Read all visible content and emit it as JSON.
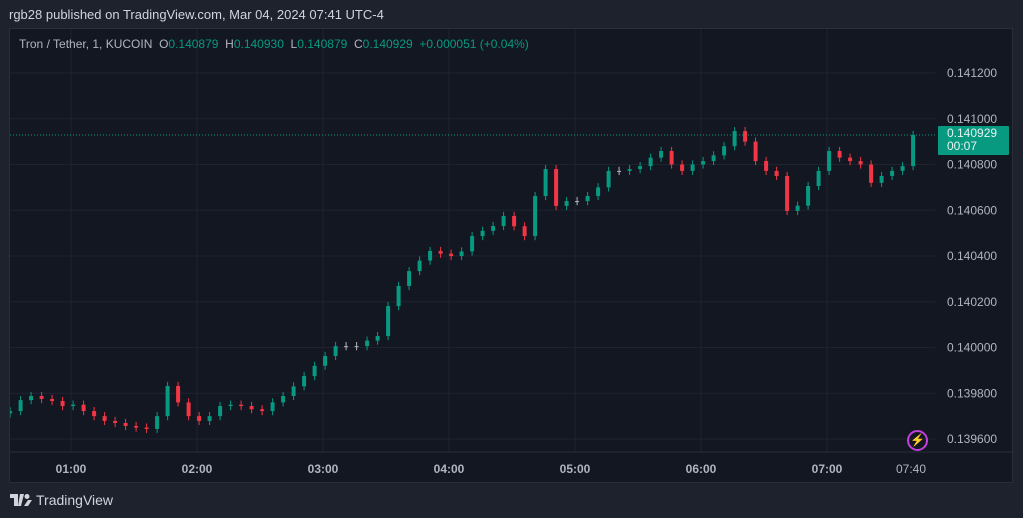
{
  "header": {
    "published": "rgb28 published on TradingView.com, Mar 04, 2024 07:41 UTC-4"
  },
  "legend": {
    "symbol": "Tron / Tether, 1, KUCOIN",
    "o_label": "O",
    "o": "0.140879",
    "h_label": "H",
    "h": "0.140930",
    "l_label": "L",
    "l": "0.140879",
    "c_label": "C",
    "c": "0.140929",
    "change": "+0.000051 (+0.04%)"
  },
  "price_tag": {
    "price": "0.140929",
    "countdown": "00:07"
  },
  "footer": {
    "brand": "TradingView"
  },
  "colors": {
    "up": "#089981",
    "down": "#f23645",
    "neutral": "#b2b5be",
    "grid": "#1f2330"
  },
  "chart_data": {
    "type": "candlestick",
    "title": "Tron / Tether, 1, KUCOIN",
    "ylim": [
      0.13952,
      0.14132
    ],
    "y_ticks": [
      "0.141200",
      "0.141000",
      "0.140800",
      "0.140600",
      "0.140400",
      "0.140200",
      "0.140000",
      "0.139800",
      "0.139600"
    ],
    "x_ticks": [
      "01:00",
      "02:00",
      "03:00",
      "04:00",
      "05:00",
      "06:00",
      "07:00",
      "07:40"
    ],
    "last_price": 0.140929,
    "interval_minutes": 5,
    "start_time": "00:31",
    "closes": [
      0.139722,
      0.13977,
      0.139788,
      0.139775,
      0.139766,
      0.139744,
      0.13975,
      0.139722,
      0.1397,
      0.139679,
      0.13967,
      0.139657,
      0.13965,
      0.139644,
      0.1397,
      0.139832,
      0.13976,
      0.1397,
      0.139679,
      0.1397,
      0.139744,
      0.13975,
      0.139744,
      0.13973,
      0.139722,
      0.13976,
      0.139788,
      0.13983,
      0.139875,
      0.13992,
      0.139963,
      0.140006,
      0.140006,
      0.140006,
      0.14003,
      0.14005,
      0.140181,
      0.140269,
      0.140334,
      0.14038,
      0.140422,
      0.14041,
      0.1404,
      0.14042,
      0.140487,
      0.14051,
      0.140531,
      0.140575,
      0.14053,
      0.140487,
      0.140662,
      0.14078,
      0.140619,
      0.14064,
      0.14064,
      0.140662,
      0.1407,
      0.140772,
      0.140772,
      0.14078,
      0.140793,
      0.14083,
      0.140859,
      0.1408,
      0.140772,
      0.1408,
      0.140815,
      0.14084,
      0.14088,
      0.140946,
      0.1409,
      0.140815,
      0.140772,
      0.14075,
      0.140597,
      0.14062,
      0.140706,
      0.140772,
      0.140859,
      0.14083,
      0.140815,
      0.1408,
      0.14072,
      0.14075,
      0.140772,
      0.140793,
      0.140929
    ]
  }
}
